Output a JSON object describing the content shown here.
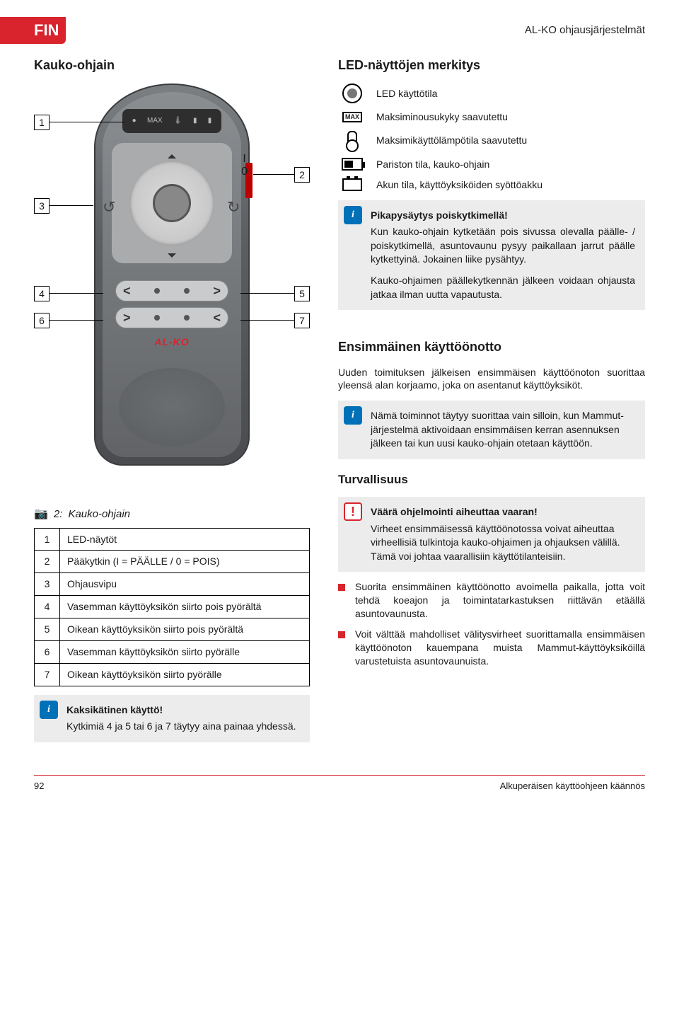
{
  "header": {
    "lang_badge": "FIN",
    "doc_title": "AL-KO ohjausjärjestelmät"
  },
  "left_heading": "Kauko-ohjain",
  "remote": {
    "io_top": "I",
    "io_bottom": "0",
    "logo": "AL-KO",
    "callouts": {
      "1": "1",
      "2": "2",
      "3": "3",
      "4": "4",
      "5": "5",
      "6": "6",
      "7": "7"
    },
    "row1": {
      "left": "<",
      "right": ">"
    },
    "row2": {
      "left": ">",
      "right": "<"
    }
  },
  "figure": {
    "icon": "📷",
    "num": "2:",
    "title": "Kauko-ohjain"
  },
  "parts": [
    {
      "n": "1",
      "txt": "LED-näytöt"
    },
    {
      "n": "2",
      "txt": "Pääkytkin (I = PÄÄLLE  /  0 = POIS)"
    },
    {
      "n": "3",
      "txt": "Ohjausvipu"
    },
    {
      "n": "4",
      "txt": "Vasemman käyttöyksikön siirto pois pyörältä"
    },
    {
      "n": "5",
      "txt": "Oikean käyttöyksikön siirto pois pyörältä"
    },
    {
      "n": "6",
      "txt": "Vasemman käyttöyksikön siirto pyörälle"
    },
    {
      "n": "7",
      "txt": "Oikean käyttöyksikön siirto pyörälle"
    }
  ],
  "two_hand": {
    "title": "Kaksikätinen käyttö!",
    "body": "Kytkimiä 4 ja 5 tai 6 ja 7 täytyy aina painaa yhdessä."
  },
  "right_heading": "LED-näyttöjen merkitys",
  "legend": {
    "led": "LED käyttötila",
    "max": "Maksiminousukyky saavutettu",
    "temp": "Maksimikäyttölämpötila saavutettu",
    "bat_remote": "Pariston tila, kauko-ohjain",
    "bat_drive": "Akun tila, käyttöyksiköiden syöttöakku",
    "max_label": "MAX"
  },
  "quickstop": {
    "title": "Pikapysäytys poiskytkimellä!",
    "p1": "Kun kauko-ohjain kytketään pois sivussa olevalla päälle- / poiskytkimellä, asuntovaunu pysyy paikallaan jarrut päälle kytkettyinä. Jokainen liike pysähtyy.",
    "p2": "Kauko-ohjaimen päällekytkennän jälkeen voidaan ohjausta jatkaa ilman uutta vapautusta."
  },
  "commission_heading": "Ensimmäinen käyttöönotto",
  "commission_intro": "Uuden toimituksen jälkeisen ensimmäisen käyttöönoton suorittaa yleensä alan korjaamo, joka on asentanut käyttöyksiköt.",
  "commission_info": "Nämä toiminnot täytyy suorittaa vain silloin, kun Mammut-järjestelmä aktivoidaan ensimmäisen kerran asennuksen jälkeen tai kun uusi kauko-ohjain otetaan käyttöön.",
  "safety_heading": "Turvallisuus",
  "warn": {
    "title": "Väärä ohjelmointi aiheuttaa vaaran!",
    "body": "Virheet ensimmäisessä käyttöönotossa voivat aiheuttaa virheellisiä tulkintoja kauko-ohjaimen ja ohjauksen välillä. Tämä voi johtaa vaarallisiin käyttötilanteisiin."
  },
  "bullets": [
    "Suorita ensimmäinen käyttöönotto avoimella paikalla, jotta voit tehdä koeajon ja toimintatarkastuksen riittävän etäällä asuntovaunusta.",
    "Voit välttää mahdolliset välitysvirheet suorittamalla ensimmäisen käyttöönoton kauempana muista Mammut-käyttöyksiköillä varustetuista asuntovaunuista."
  ],
  "footer": {
    "page": "92",
    "note": "Alkuperäisen käyttöohjeen käännös"
  },
  "warn_glyph": "!"
}
